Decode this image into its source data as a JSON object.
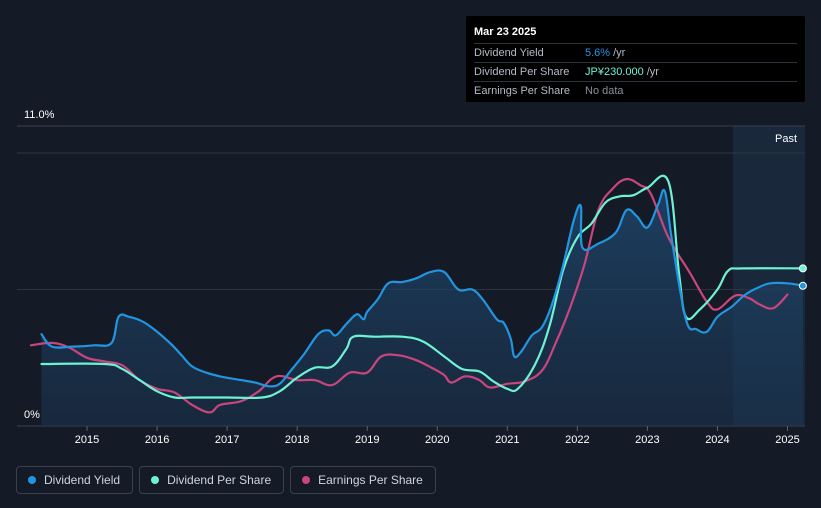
{
  "tooltip": {
    "date": "Mar 23 2025",
    "rows": [
      {
        "label": "Dividend Yield",
        "value": "5.6%",
        "unit": "/yr",
        "color": "#2394df"
      },
      {
        "label": "Dividend Per Share",
        "value": "JP¥230.000",
        "unit": "/yr",
        "color": "#6ff2d4"
      },
      {
        "label": "Earnings Per Share",
        "value": "No data",
        "unit": "",
        "color": "#8a8f99"
      }
    ]
  },
  "legend": [
    {
      "label": "Dividend Yield",
      "color": "#2394df"
    },
    {
      "label": "Dividend Per Share",
      "color": "#6ff2d4"
    },
    {
      "label": "Earnings Per Share",
      "color": "#c8467d"
    }
  ],
  "chart_data": {
    "type": "line",
    "y_tick_labels": [
      "11.0%",
      "0%"
    ],
    "ylim": [
      0,
      11
    ],
    "xlim": [
      2014.0,
      2025.25
    ],
    "x_tick_labels": [
      "2015",
      "2016",
      "2017",
      "2018",
      "2019",
      "2020",
      "2021",
      "2022",
      "2023",
      "2024",
      "2025"
    ],
    "past_label": "Past",
    "forecast_start": 2024.22,
    "grid": true,
    "series": [
      {
        "name": "Dividend Yield",
        "color": "#2394df",
        "area": true,
        "points": [
          [
            2014.35,
            3.7
          ],
          [
            2014.5,
            3.2
          ],
          [
            2014.8,
            3.2
          ],
          [
            2015.1,
            3.25
          ],
          [
            2015.35,
            3.35
          ],
          [
            2015.45,
            4.4
          ],
          [
            2015.6,
            4.4
          ],
          [
            2015.8,
            4.2
          ],
          [
            2016.0,
            3.8
          ],
          [
            2016.2,
            3.3
          ],
          [
            2016.35,
            2.85
          ],
          [
            2016.5,
            2.4
          ],
          [
            2016.7,
            2.15
          ],
          [
            2016.9,
            2.0
          ],
          [
            2017.2,
            1.85
          ],
          [
            2017.4,
            1.75
          ],
          [
            2017.6,
            1.6
          ],
          [
            2017.75,
            1.7
          ],
          [
            2017.9,
            2.2
          ],
          [
            2018.1,
            2.9
          ],
          [
            2018.3,
            3.7
          ],
          [
            2018.45,
            3.85
          ],
          [
            2018.55,
            3.65
          ],
          [
            2018.7,
            4.1
          ],
          [
            2018.85,
            4.5
          ],
          [
            2018.95,
            4.3
          ],
          [
            2019.0,
            4.6
          ],
          [
            2019.15,
            5.1
          ],
          [
            2019.3,
            5.75
          ],
          [
            2019.5,
            5.8
          ],
          [
            2019.7,
            5.95
          ],
          [
            2019.9,
            6.2
          ],
          [
            2020.1,
            6.2
          ],
          [
            2020.3,
            5.5
          ],
          [
            2020.5,
            5.5
          ],
          [
            2020.65,
            5.1
          ],
          [
            2020.85,
            4.3
          ],
          [
            2020.95,
            4.15
          ],
          [
            2021.05,
            3.5
          ],
          [
            2021.1,
            2.8
          ],
          [
            2021.2,
            3.0
          ],
          [
            2021.35,
            3.65
          ],
          [
            2021.5,
            4.0
          ],
          [
            2021.65,
            5.0
          ],
          [
            2021.8,
            6.5
          ],
          [
            2021.95,
            8.3
          ],
          [
            2022.05,
            8.85
          ],
          [
            2022.07,
            7.2
          ],
          [
            2022.3,
            7.35
          ],
          [
            2022.55,
            7.8
          ],
          [
            2022.7,
            8.7
          ],
          [
            2022.85,
            8.45
          ],
          [
            2023.0,
            8.0
          ],
          [
            2023.15,
            8.9
          ],
          [
            2023.25,
            9.45
          ],
          [
            2023.35,
            7.5
          ],
          [
            2023.55,
            4.3
          ],
          [
            2023.7,
            3.9
          ],
          [
            2023.85,
            3.8
          ],
          [
            2024.0,
            4.4
          ],
          [
            2024.2,
            4.8
          ],
          [
            2024.4,
            5.3
          ],
          [
            2024.6,
            5.6
          ],
          [
            2024.75,
            5.75
          ],
          [
            2025.0,
            5.75
          ],
          [
            2025.22,
            5.65
          ]
        ]
      },
      {
        "name": "Dividend Per Share",
        "color": "#6ff2d4",
        "area": false,
        "points": [
          [
            2014.35,
            2.5
          ],
          [
            2015.25,
            2.5
          ],
          [
            2015.5,
            2.3
          ],
          [
            2015.75,
            1.85
          ],
          [
            2016.0,
            1.4
          ],
          [
            2016.25,
            1.15
          ],
          [
            2016.5,
            1.15
          ],
          [
            2017.0,
            1.15
          ],
          [
            2017.5,
            1.15
          ],
          [
            2017.75,
            1.4
          ],
          [
            2018.0,
            1.95
          ],
          [
            2018.25,
            2.35
          ],
          [
            2018.5,
            2.4
          ],
          [
            2018.7,
            3.1
          ],
          [
            2018.8,
            3.6
          ],
          [
            2019.1,
            3.6
          ],
          [
            2019.5,
            3.6
          ],
          [
            2019.8,
            3.4
          ],
          [
            2020.1,
            2.8
          ],
          [
            2020.35,
            2.3
          ],
          [
            2020.6,
            2.2
          ],
          [
            2020.8,
            1.8
          ],
          [
            2021.0,
            1.5
          ],
          [
            2021.15,
            1.5
          ],
          [
            2021.4,
            2.5
          ],
          [
            2021.6,
            4.0
          ],
          [
            2021.8,
            6.3
          ],
          [
            2022.0,
            7.6
          ],
          [
            2022.2,
            8.15
          ],
          [
            2022.4,
            9.0
          ],
          [
            2022.6,
            9.25
          ],
          [
            2022.8,
            9.3
          ],
          [
            2023.0,
            9.6
          ],
          [
            2023.3,
            9.85
          ],
          [
            2023.45,
            6.2
          ],
          [
            2023.55,
            4.4
          ],
          [
            2023.75,
            4.7
          ],
          [
            2024.0,
            5.5
          ],
          [
            2024.15,
            6.25
          ],
          [
            2024.35,
            6.35
          ],
          [
            2025.22,
            6.35
          ]
        ]
      },
      {
        "name": "Earnings Per Share",
        "color": "#c8467d",
        "area": false,
        "points": [
          [
            2014.2,
            3.25
          ],
          [
            2014.5,
            3.35
          ],
          [
            2014.75,
            3.15
          ],
          [
            2015.0,
            2.75
          ],
          [
            2015.25,
            2.6
          ],
          [
            2015.5,
            2.45
          ],
          [
            2015.75,
            1.85
          ],
          [
            2016.0,
            1.5
          ],
          [
            2016.25,
            1.35
          ],
          [
            2016.5,
            0.85
          ],
          [
            2016.75,
            0.55
          ],
          [
            2016.9,
            0.85
          ],
          [
            2017.2,
            1.0
          ],
          [
            2017.45,
            1.4
          ],
          [
            2017.7,
            2.0
          ],
          [
            2018.0,
            1.85
          ],
          [
            2018.25,
            1.85
          ],
          [
            2018.5,
            1.65
          ],
          [
            2018.75,
            2.15
          ],
          [
            2019.0,
            2.15
          ],
          [
            2019.2,
            2.8
          ],
          [
            2019.45,
            2.85
          ],
          [
            2019.7,
            2.65
          ],
          [
            2019.95,
            2.3
          ],
          [
            2020.1,
            2.05
          ],
          [
            2020.2,
            1.75
          ],
          [
            2020.4,
            2.0
          ],
          [
            2020.6,
            1.85
          ],
          [
            2020.75,
            1.55
          ],
          [
            2021.0,
            1.7
          ],
          [
            2021.25,
            1.8
          ],
          [
            2021.5,
            2.25
          ],
          [
            2021.7,
            3.4
          ],
          [
            2021.9,
            4.8
          ],
          [
            2022.1,
            6.5
          ],
          [
            2022.3,
            8.7
          ],
          [
            2022.5,
            9.55
          ],
          [
            2022.7,
            9.95
          ],
          [
            2022.9,
            9.7
          ],
          [
            2023.05,
            9.35
          ],
          [
            2023.3,
            7.6
          ],
          [
            2023.6,
            6.2
          ],
          [
            2023.85,
            5.0
          ],
          [
            2024.0,
            4.7
          ],
          [
            2024.25,
            5.25
          ],
          [
            2024.45,
            5.15
          ],
          [
            2024.6,
            4.9
          ],
          [
            2024.8,
            4.75
          ],
          [
            2025.0,
            5.3
          ]
        ]
      }
    ],
    "end_markers": [
      {
        "series": "Dividend Yield",
        "x": 2025.22,
        "y": 5.65
      },
      {
        "series": "Dividend Per Share",
        "x": 2025.22,
        "y": 6.35
      }
    ]
  }
}
